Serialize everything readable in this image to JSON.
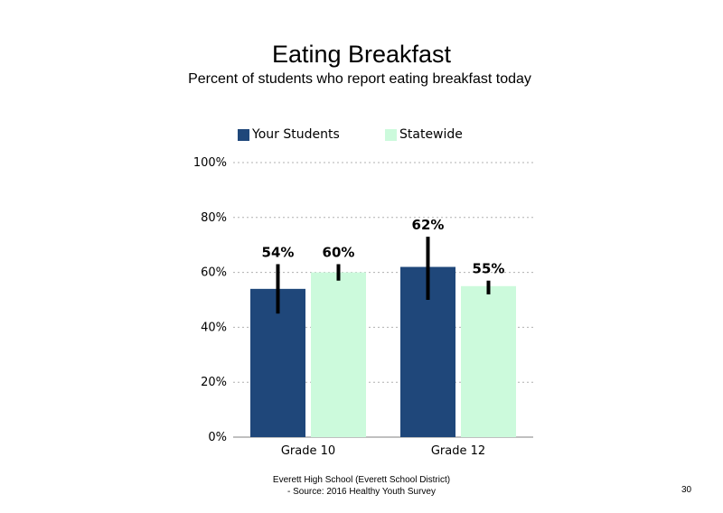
{
  "title": "Eating Breakfast",
  "subtitle": "Percent of students who report eating breakfast today",
  "footer": {
    "line1": "Everett High School (Everett School District)",
    "line2": "- Source: 2016 Healthy Youth Survey"
  },
  "page_number": "30",
  "chart_data": {
    "type": "bar",
    "title": "Eating Breakfast",
    "subtitle": "Percent of students who report eating breakfast today",
    "categories": [
      "Grade 10",
      "Grade 12"
    ],
    "series": [
      {
        "name": "Your Students",
        "color": "#1f477a",
        "values": [
          54,
          62
        ],
        "labels": [
          "54%",
          "62%"
        ],
        "error_low": [
          45,
          50
        ],
        "error_high": [
          63,
          73
        ]
      },
      {
        "name": "Statewide",
        "color": "#ccfadc",
        "values": [
          60,
          55
        ],
        "labels": [
          "60%",
          "55%"
        ],
        "error_low": [
          57,
          52
        ],
        "error_high": [
          63,
          57
        ]
      }
    ],
    "ylim": [
      0,
      100
    ],
    "yticks": [
      0,
      20,
      40,
      60,
      80,
      100
    ],
    "ytick_labels": [
      "0%",
      "20%",
      "40%",
      "60%",
      "80%",
      "100%"
    ],
    "grid": "dotted horizontal",
    "legend": "top"
  }
}
